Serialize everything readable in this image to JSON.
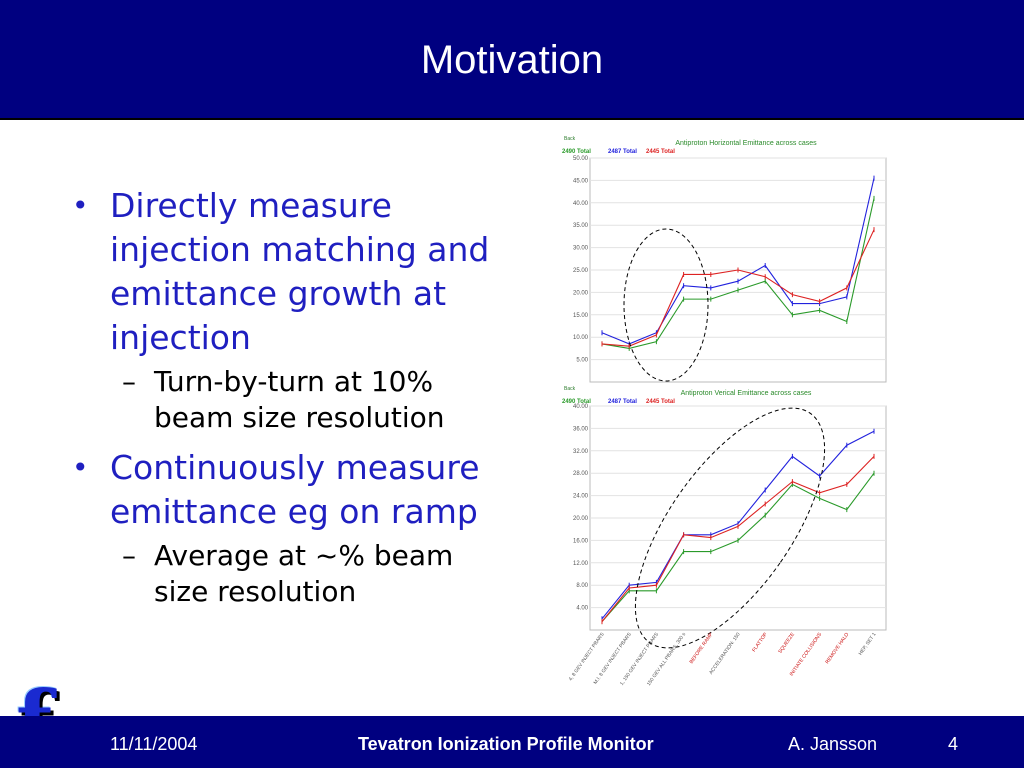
{
  "slide": {
    "title": "Motivation"
  },
  "bullets": [
    {
      "text": "Directly measure injection matching and emittance growth at injection",
      "sub": "Turn-by-turn at 10% beam size resolution"
    },
    {
      "text": "Continuously measure emittance eg on ramp",
      "sub": "Average at ~% beam size resolution"
    }
  ],
  "footer": {
    "date": "11/11/2004",
    "title": "Tevatron Ionization Profile Monitor",
    "author": "A. Jansson",
    "page": "4"
  },
  "logo": {
    "letter": "f"
  },
  "chart_data": [
    {
      "type": "line",
      "title": "Antiproton Horizontal Emittance across cases",
      "corner_label": "Back",
      "ylim": [
        0,
        50
      ],
      "yticks": [
        "5.00",
        "10.00",
        "15.00",
        "20.00",
        "25.00",
        "30.00",
        "35.00",
        "40.00",
        "45.00",
        "50.00"
      ],
      "grid": true,
      "legend_position": "top-left",
      "highlight": "dashed ellipse around points 1-4",
      "series": [
        {
          "name": "2490 Total",
          "color": "#2a9a2a",
          "values": [
            8.5,
            7.5,
            9,
            18.5,
            18.5,
            20.5,
            22.5,
            15,
            16,
            13.5,
            41
          ]
        },
        {
          "name": "2487 Total",
          "color": "#2222dd",
          "values": [
            11,
            8.5,
            11,
            21.5,
            21,
            22.5,
            26,
            17.5,
            17.5,
            19,
            45.5
          ]
        },
        {
          "name": "2445 Total",
          "color": "#dd2222",
          "values": [
            8.5,
            8,
            10.5,
            24,
            24,
            25,
            23.5,
            19.5,
            18,
            21,
            34
          ]
        }
      ]
    },
    {
      "type": "line",
      "title": "Antiproton Verical Emittance across cases",
      "corner_label": "Back",
      "ylim": [
        0,
        40
      ],
      "yticks": [
        "4.00",
        "8.00",
        "12.00",
        "16.00",
        "20.00",
        "24.00",
        "28.00",
        "32.00",
        "36.00",
        "40.00"
      ],
      "grid": true,
      "legend_position": "top-left",
      "highlight": "dashed ellipse around points 1-7",
      "categories": [
        {
          "label": "4, 8 GEV INJECT PBARS",
          "color": "#555555"
        },
        {
          "label": "M.I. 8 GEV INJECT PBARS",
          "color": "#555555"
        },
        {
          "label": "1, 150 GEV INJECT PBARS",
          "color": "#555555"
        },
        {
          "label": "150 GEV ALL PBARS, 300 s",
          "color": "#555555"
        },
        {
          "label": "BEFORE RAMP",
          "color": "#cc1111"
        },
        {
          "label": "ACCELERATION: 150",
          "color": "#555555"
        },
        {
          "label": "FLATTOP",
          "color": "#cc1111"
        },
        {
          "label": "SQUEEZE",
          "color": "#cc1111"
        },
        {
          "label": "INITIATE COLLISIONS",
          "color": "#cc1111"
        },
        {
          "label": "REMOVE HALO",
          "color": "#cc1111"
        },
        {
          "label": "HEP, SET 1",
          "color": "#555555"
        }
      ],
      "series": [
        {
          "name": "2490 Total",
          "color": "#2a9a2a",
          "values": [
            1.5,
            7,
            7,
            14,
            14,
            16,
            20.5,
            26,
            23.5,
            21.5,
            28
          ]
        },
        {
          "name": "2487 Total",
          "color": "#2222dd",
          "values": [
            2,
            8,
            8.5,
            17,
            17,
            19,
            25,
            31,
            27.5,
            33,
            35.5
          ]
        },
        {
          "name": "2445 Total",
          "color": "#dd2222",
          "values": [
            1.5,
            7.5,
            8,
            17,
            16.5,
            18.5,
            22.5,
            26.5,
            24.5,
            26,
            31
          ]
        }
      ]
    }
  ]
}
